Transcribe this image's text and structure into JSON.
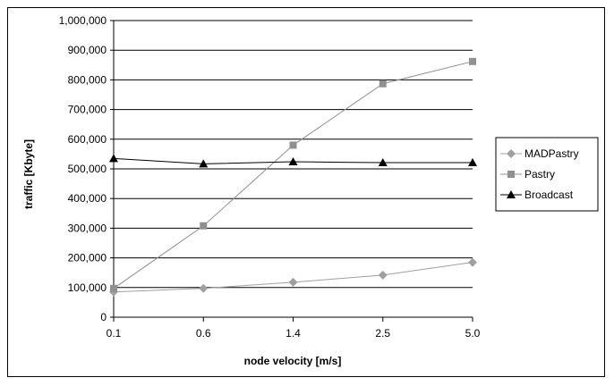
{
  "chart_data": {
    "type": "line",
    "title": "",
    "xlabel": "node velocity [m/s]",
    "ylabel": "traffic [Kbyte]",
    "categories": [
      "0.1",
      "0.6",
      "1.4",
      "2.5",
      "5.0"
    ],
    "ylim": [
      0,
      1000000
    ],
    "yticks": [
      "0",
      "100,000",
      "200,000",
      "300,000",
      "400,000",
      "500,000",
      "600,000",
      "700,000",
      "800,000",
      "900,000",
      "1,000,000"
    ],
    "grid": true,
    "legend_position": "right",
    "series": [
      {
        "name": "MADPastry",
        "values": [
          85000,
          97000,
          118000,
          142000,
          185000
        ],
        "color": "#a0a0a0",
        "marker": "diamond"
      },
      {
        "name": "Pastry",
        "values": [
          97000,
          308000,
          580000,
          787000,
          862000
        ],
        "color": "#909090",
        "marker": "square"
      },
      {
        "name": "Broadcast",
        "values": [
          535000,
          517000,
          524000,
          521000,
          521000
        ],
        "color": "#000000",
        "marker": "triangle"
      }
    ]
  }
}
